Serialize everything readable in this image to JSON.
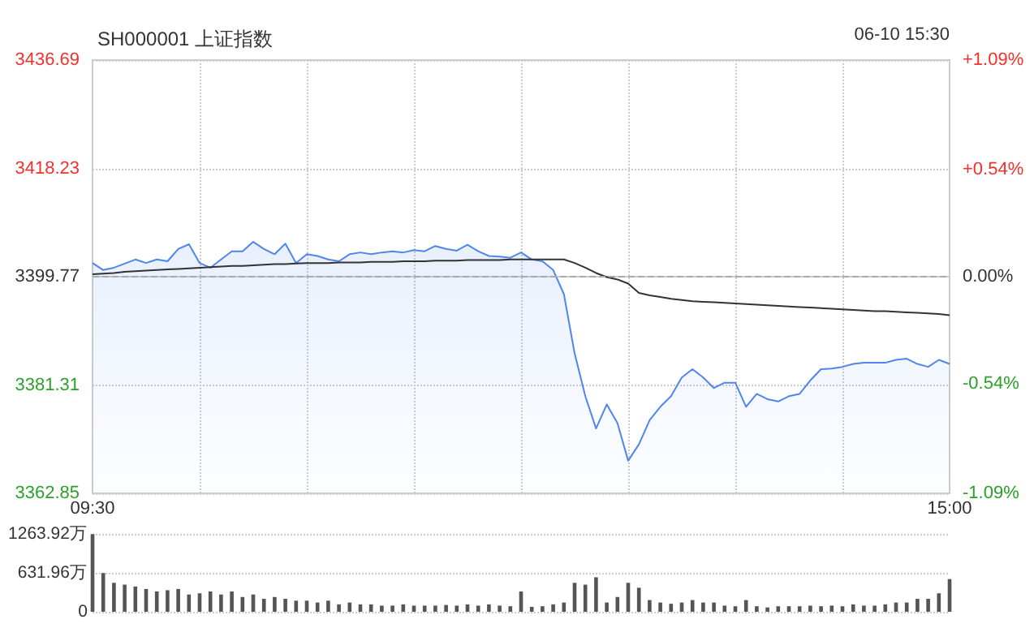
{
  "chart_data": [
    {
      "type": "line",
      "title": "SH000001 上证指数",
      "annotations": [
        "06-10 15:30"
      ],
      "categories": [
        "09:30",
        null,
        null,
        null,
        null,
        null,
        null,
        null,
        null,
        null,
        null,
        null,
        null,
        null,
        null,
        null,
        null,
        null,
        null,
        null,
        null,
        null,
        null,
        null,
        null,
        null,
        null,
        null,
        null,
        null,
        null,
        null,
        null,
        null,
        null,
        null,
        null,
        null,
        null,
        null,
        null,
        null,
        null,
        null,
        null,
        null,
        null,
        null,
        null,
        null,
        null,
        null,
        null,
        null,
        null,
        null,
        null,
        null,
        null,
        null,
        null,
        null,
        null,
        null,
        null,
        null,
        null,
        null,
        null,
        null,
        null,
        null,
        null,
        null,
        null,
        null,
        null,
        null,
        null,
        null,
        "15:00"
      ],
      "series": [
        {
          "type": "area",
          "color": "#4f86ec",
          "values": [
            3402.1,
            3400.9,
            3401.3,
            3402.0,
            3402.7,
            3402.1,
            3402.7,
            3402.4,
            3404.5,
            3405.3,
            3402.1,
            3401.3,
            3402.7,
            3404.1,
            3404.1,
            3405.7,
            3404.5,
            3403.6,
            3405.4,
            3402.1,
            3403.6,
            3403.3,
            3402.7,
            3402.4,
            3403.6,
            3403.9,
            3403.6,
            3403.9,
            3404.1,
            3403.9,
            3404.3,
            3404.1,
            3405.0,
            3404.5,
            3404.2,
            3405.2,
            3404.1,
            3403.3,
            3403.2,
            3403.0,
            3403.9,
            3402.7,
            3402.4,
            3400.9,
            3396.8,
            3386.7,
            3379.4,
            3373.9,
            3378.0,
            3374.8,
            3368.4,
            3371.2,
            3375.3,
            3377.6,
            3379.4,
            3382.6,
            3384.0,
            3382.6,
            3380.8,
            3381.7,
            3381.7,
            3377.6,
            3379.8,
            3378.9,
            3378.5,
            3379.4,
            3379.8,
            3382.1,
            3384.0,
            3384.1,
            3384.4,
            3384.9,
            3385.1,
            3385.1,
            3385.1,
            3385.6,
            3385.8,
            3384.9,
            3384.4,
            3385.6,
            3384.9
          ]
        },
        {
          "type": "line",
          "color": "#333333",
          "values": [
            3400.2,
            3400.3,
            3400.4,
            3400.6,
            3400.7,
            3400.8,
            3400.9,
            3401.0,
            3401.1,
            3401.2,
            3401.3,
            3401.4,
            3401.5,
            3401.6,
            3401.6,
            3401.7,
            3401.8,
            3401.9,
            3401.9,
            3402.0,
            3402.1,
            3402.1,
            3402.1,
            3402.2,
            3402.2,
            3402.2,
            3402.3,
            3402.3,
            3402.3,
            3402.4,
            3402.4,
            3402.4,
            3402.5,
            3402.5,
            3402.5,
            3402.6,
            3402.6,
            3402.6,
            3402.6,
            3402.7,
            3402.7,
            3402.7,
            3402.7,
            3402.7,
            3402.7,
            3402.1,
            3401.3,
            3400.4,
            3399.7,
            3399.3,
            3398.6,
            3397.0,
            3396.6,
            3396.3,
            3396.0,
            3395.8,
            3395.6,
            3395.5,
            3395.4,
            3395.3,
            3395.2,
            3395.1,
            3395.0,
            3394.9,
            3394.8,
            3394.7,
            3394.6,
            3394.5,
            3394.4,
            3394.3,
            3394.2,
            3394.1,
            3394.0,
            3393.9,
            3393.9,
            3393.8,
            3393.7,
            3393.6,
            3393.5,
            3393.4,
            3393.2
          ]
        }
      ],
      "ylim": [
        3362.85,
        3436.69
      ],
      "yticks": [
        3362.85,
        3381.31,
        3399.77,
        3418.23,
        3436.69
      ],
      "y2lim": [
        -1.09,
        1.09
      ],
      "y2ticks": [
        {
          "value": -1.09,
          "label": "-1.09%"
        },
        {
          "value": -0.54,
          "label": "-0.54%"
        },
        {
          "value": 0,
          "label": "0.00%"
        },
        {
          "value": 0.54,
          "label": "+0.54%"
        },
        {
          "value": 1.09,
          "label": "+1.09%"
        }
      ],
      "ref_lines": [
        {
          "axis": "y",
          "value": 3399.77,
          "label": null,
          "color": "#aaaaaa",
          "line_style": "dashed"
        }
      ],
      "grid": true
    },
    {
      "type": "bar",
      "categories": [
        null,
        null,
        null,
        null,
        null,
        null,
        null,
        null,
        null,
        null,
        null,
        null,
        null,
        null,
        null,
        null,
        null,
        null,
        null,
        null,
        null,
        null,
        null,
        null,
        null,
        null,
        null,
        null,
        null,
        null,
        null,
        null,
        null,
        null,
        null,
        null,
        null,
        null,
        null,
        null,
        null,
        null,
        null,
        null,
        null,
        null,
        null,
        null,
        null,
        null,
        null,
        null,
        null,
        null,
        null,
        null,
        null,
        null,
        null,
        null,
        null,
        null,
        null,
        null,
        null,
        null,
        null,
        null,
        null,
        null,
        null,
        null,
        null,
        null,
        null,
        null,
        null,
        null,
        null,
        null,
        null
      ],
      "color": "#555555",
      "values": [
        1260,
        630,
        470,
        440,
        410,
        370,
        330,
        350,
        370,
        280,
        300,
        330,
        280,
        330,
        240,
        280,
        210,
        240,
        210,
        180,
        180,
        150,
        180,
        120,
        150,
        120,
        120,
        100,
        100,
        120,
        100,
        100,
        100,
        110,
        100,
        120,
        100,
        120,
        100,
        90,
        330,
        80,
        90,
        120,
        150,
        470,
        440,
        560,
        150,
        240,
        470,
        390,
        190,
        150,
        130,
        150,
        190,
        150,
        150,
        100,
        90,
        190,
        90,
        70,
        90,
        90,
        90,
        100,
        90,
        100,
        90,
        120,
        100,
        100,
        120,
        150,
        150,
        210,
        210,
        300,
        530
      ],
      "ylim": [
        0,
        1263.92
      ],
      "yticks": [
        0,
        {
          "value": 631.96,
          "label": "631.96万"
        },
        {
          "value": 1263.92,
          "label": "1263.92万"
        }
      ],
      "tick_labels": "y",
      "grid": "y"
    }
  ]
}
